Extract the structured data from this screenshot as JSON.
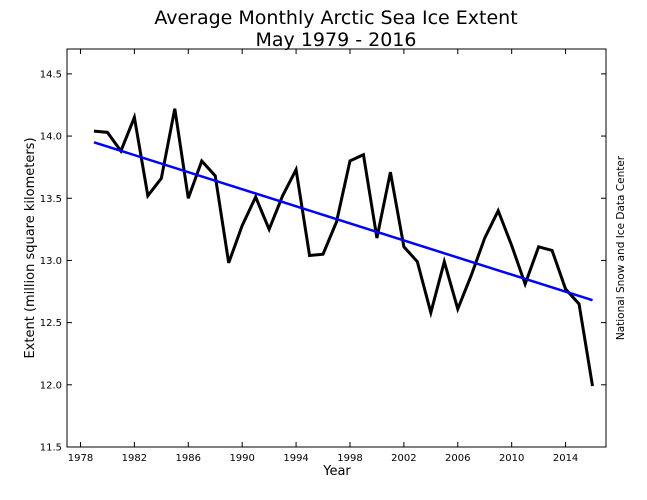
{
  "chart_data": {
    "type": "line",
    "title": "Average Monthly Arctic Sea Ice Extent",
    "subtitle": "May 1979 - 2016",
    "xlabel": "Year",
    "ylabel": "Extent (million square kilometers)",
    "credit": "National Snow and Ice Data Center",
    "xlim": [
      1977,
      2017
    ],
    "ylim": [
      11.5,
      14.7
    ],
    "x_ticks": [
      1978,
      1982,
      1986,
      1990,
      1994,
      1998,
      2002,
      2006,
      2010,
      2014
    ],
    "y_ticks": [
      "11.5",
      "12.0",
      "12.5",
      "13.0",
      "13.5",
      "14.0",
      "14.5"
    ],
    "grid": false,
    "legend": "none",
    "series": [
      {
        "kind": "data",
        "color": "#000000",
        "x": [
          1979,
          1980,
          1981,
          1982,
          1983,
          1984,
          1985,
          1986,
          1987,
          1988,
          1989,
          1990,
          1991,
          1992,
          1993,
          1994,
          1995,
          1996,
          1997,
          1998,
          1999,
          2000,
          2001,
          2002,
          2003,
          2004,
          2005,
          2006,
          2007,
          2008,
          2009,
          2010,
          2011,
          2012,
          2013,
          2014,
          2015,
          2016
        ],
        "values": [
          14.04,
          14.03,
          13.88,
          14.15,
          13.52,
          13.66,
          14.22,
          13.5,
          13.8,
          13.68,
          12.98,
          13.28,
          13.51,
          13.25,
          13.52,
          13.73,
          13.04,
          13.05,
          13.31,
          13.8,
          13.85,
          13.18,
          13.71,
          13.11,
          12.99,
          12.58,
          12.99,
          12.61,
          12.88,
          13.18,
          13.4,
          13.12,
          12.81,
          13.11,
          13.08,
          12.77,
          12.65,
          11.99
        ]
      },
      {
        "kind": "trend",
        "color": "#0000ff",
        "x": [
          1979,
          2016
        ],
        "values": [
          13.95,
          12.68
        ]
      }
    ]
  }
}
